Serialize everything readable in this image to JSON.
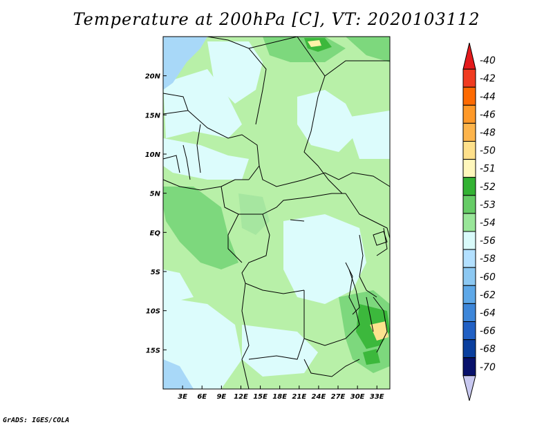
{
  "title": "Temperature at 200hPa [C], VT: 2020103112",
  "footer": "GrADS: IGES/COLA",
  "map": {
    "lon_range": [
      0,
      35
    ],
    "lat_range": [
      -20,
      25
    ],
    "lon_ticks": [
      3,
      6,
      9,
      12,
      15,
      18,
      21,
      24,
      27,
      30,
      33
    ],
    "lon_tick_labels": [
      "3E",
      "6E",
      "9E",
      "12E",
      "15E",
      "18E",
      "21E",
      "24E",
      "27E",
      "30E",
      "33E"
    ],
    "lat_ticks": [
      20,
      15,
      10,
      5,
      0,
      -5,
      -10,
      -15
    ],
    "lat_tick_labels": [
      "20N",
      "15N",
      "10N",
      "5N",
      "EQ",
      "5S",
      "10S",
      "15S"
    ]
  },
  "colorbar": {
    "labels": [
      "-40",
      "-42",
      "-44",
      "-46",
      "-48",
      "-50",
      "-51",
      "-52",
      "-53",
      "-54",
      "-56",
      "-58",
      "-60",
      "-62",
      "-64",
      "-66",
      "-68",
      "-70"
    ],
    "colors": [
      "#e41a1c",
      "#f03b20",
      "#fd6a02",
      "#fe9929",
      "#fdb44b",
      "#fee08b",
      "#fff7bc",
      "#33b233",
      "#66cc66",
      "#99e699",
      "#d9fafa",
      "#b3e0ff",
      "#8cc8f2",
      "#5ea8e8",
      "#3d86d9",
      "#2160c4",
      "#0a3f9e",
      "#08116b",
      "#c8c8f0"
    ]
  }
}
